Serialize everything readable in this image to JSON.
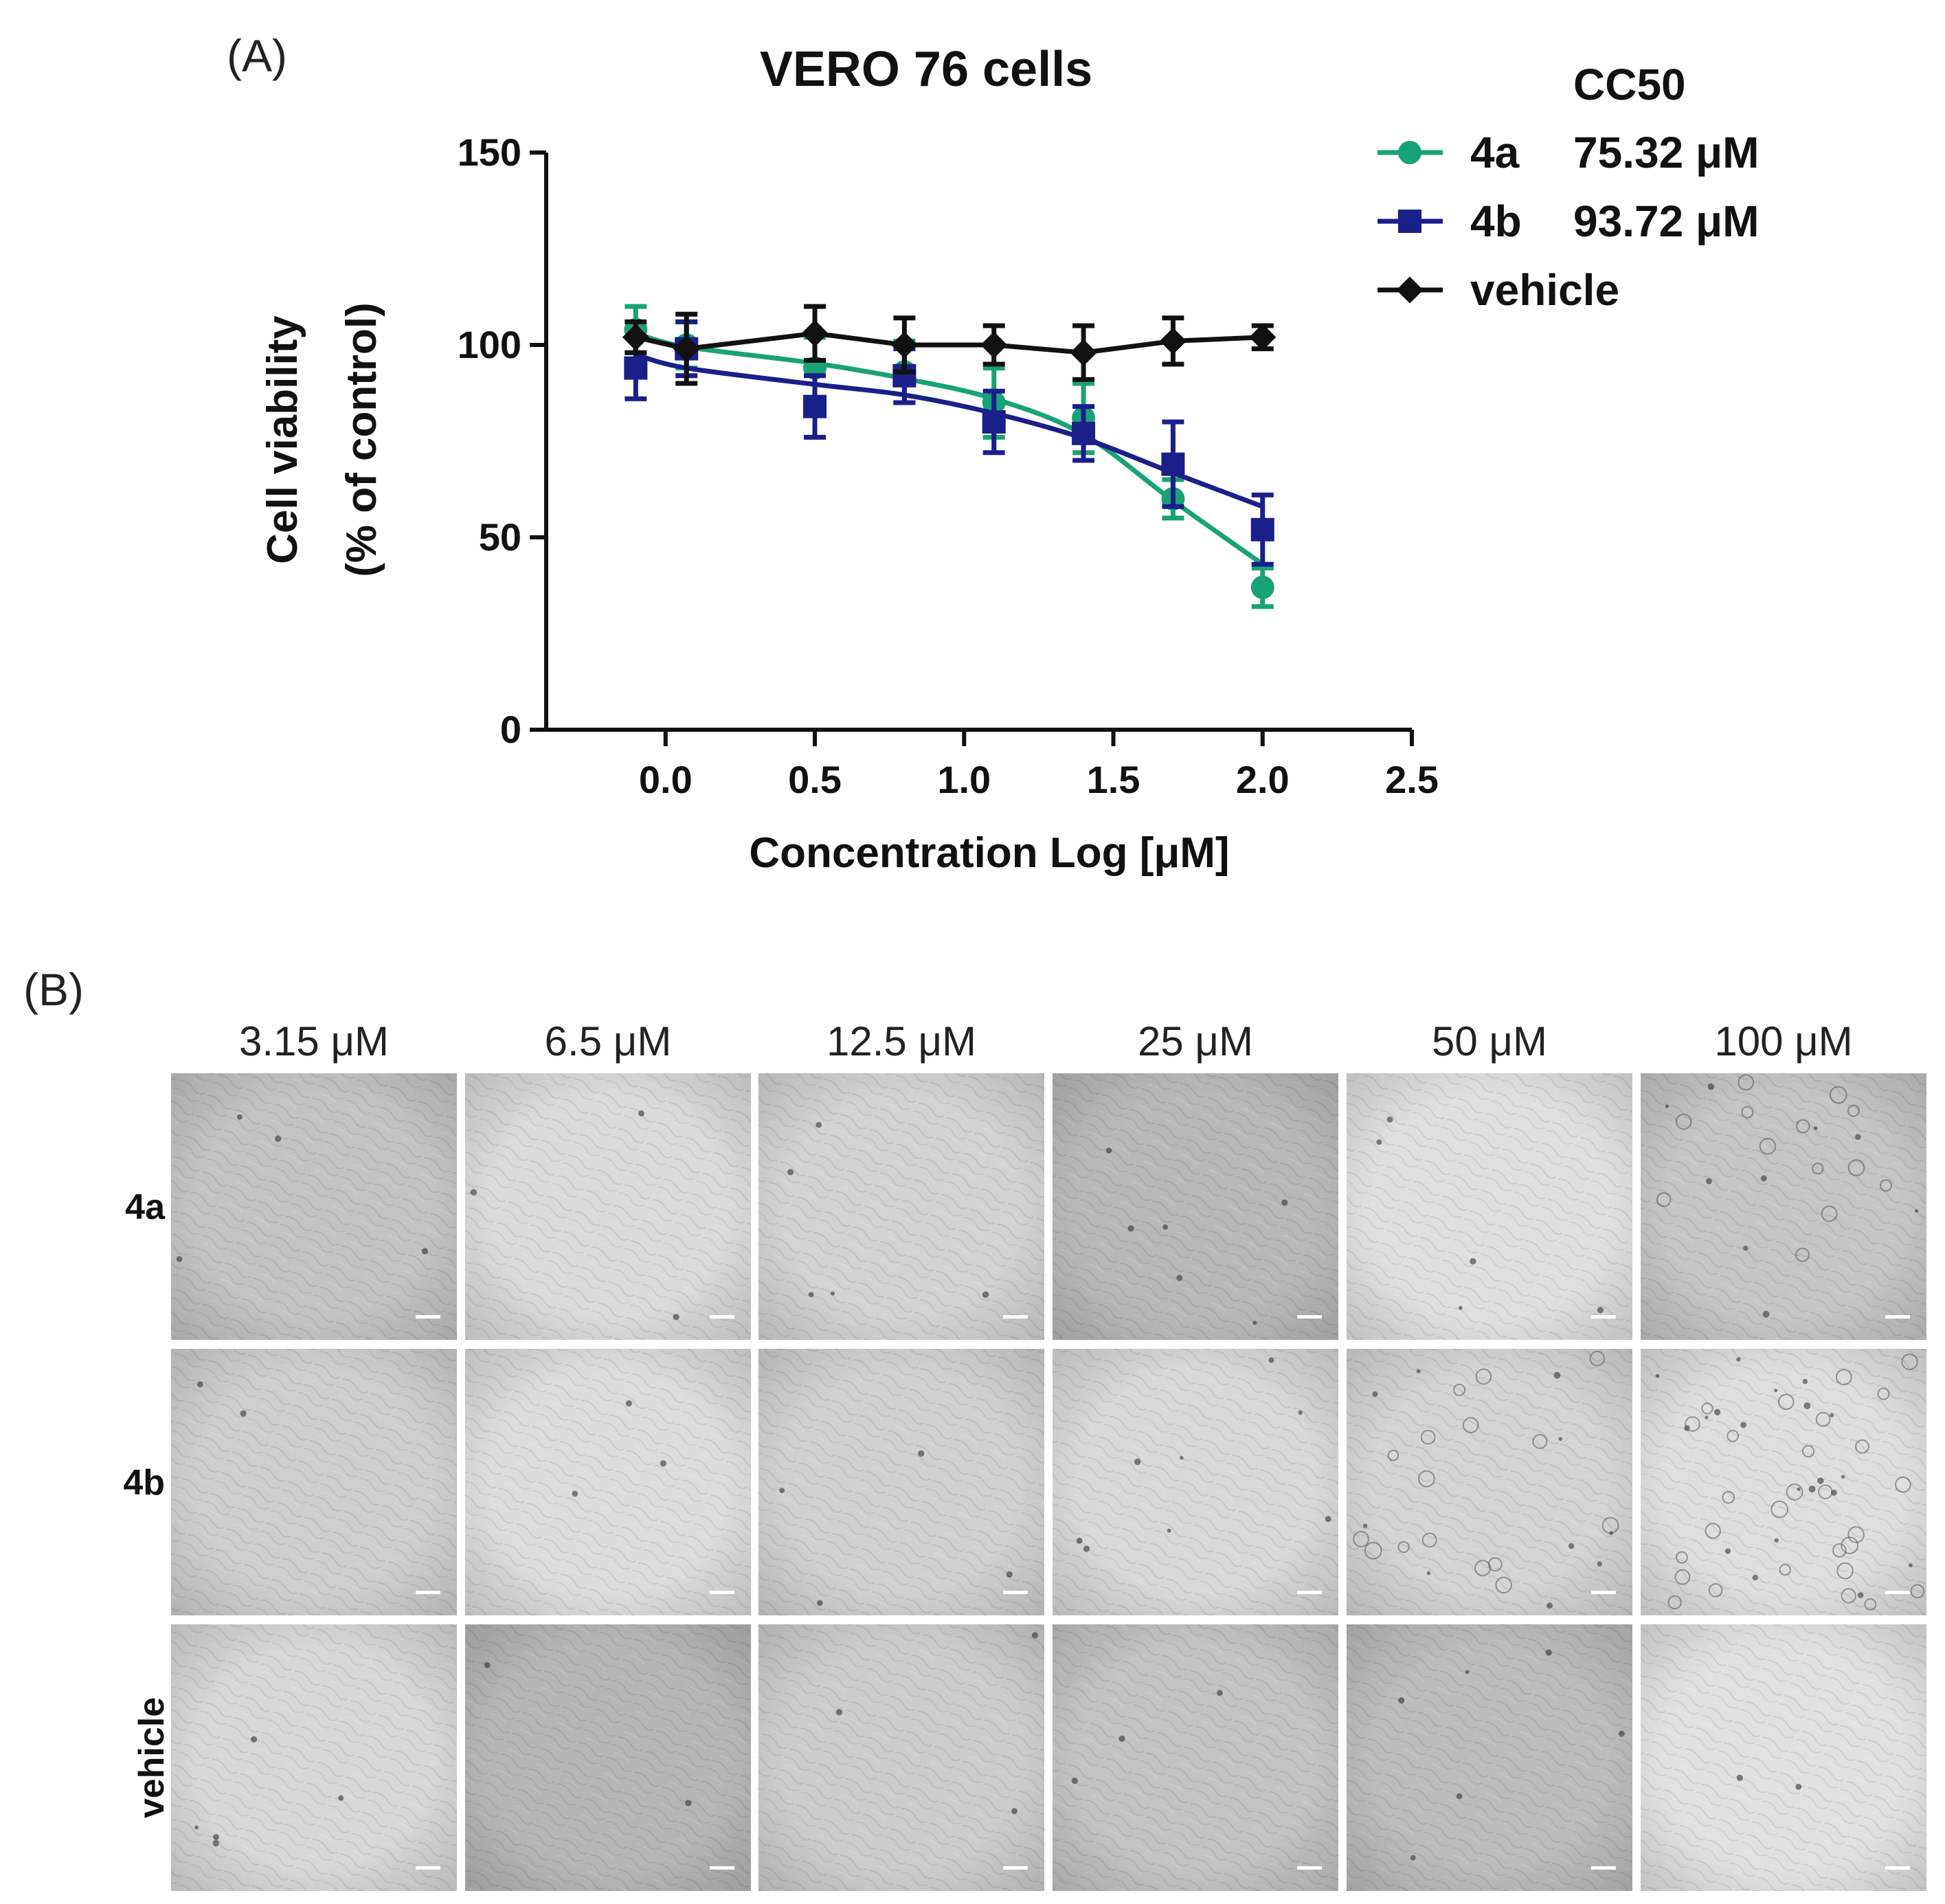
{
  "panel_a_label": "(A)",
  "panel_b_label": "(B)",
  "chart_data": {
    "type": "line",
    "title": "VERO 76 cells",
    "xlabel": "Concentration Log [μM]",
    "ylabel_line1": "Cell viability",
    "ylabel_line2": "(% of control)",
    "xlim": [
      -0.4,
      2.5
    ],
    "ylim": [
      0,
      150
    ],
    "xticks": [
      0.0,
      0.5,
      1.0,
      1.5,
      2.0,
      2.5
    ],
    "xtick_labels": [
      "0.0",
      "0.5",
      "1.0",
      "1.5",
      "2.0",
      "2.5"
    ],
    "yticks": [
      0,
      50,
      100,
      150
    ],
    "ytick_labels": [
      "0",
      "50",
      "100",
      "150"
    ],
    "legend_header": "CC50",
    "series": [
      {
        "name": "4a",
        "cc50": "75.32 μM",
        "color": "#1aa277",
        "marker": "circle",
        "x": [
          -0.1,
          0.07,
          0.5,
          0.8,
          1.1,
          1.4,
          1.7,
          2.0
        ],
        "y": [
          104,
          100,
          94,
          93,
          85,
          81,
          60,
          37
        ],
        "err": [
          6,
          6,
          8,
          8,
          9,
          9,
          5,
          5
        ],
        "fit": true
      },
      {
        "name": "4b",
        "cc50": "93.72 μM",
        "color": "#1a1f8a",
        "marker": "square",
        "x": [
          -0.1,
          0.07,
          0.5,
          0.8,
          1.1,
          1.4,
          1.7,
          2.0
        ],
        "y": [
          94,
          99,
          84,
          92,
          80,
          77,
          69,
          52
        ],
        "err": [
          8,
          7,
          8,
          7,
          8,
          7,
          11,
          9
        ],
        "fit": true
      },
      {
        "name": "vehicle",
        "cc50": "",
        "color": "#111111",
        "marker": "diamond",
        "x": [
          -0.1,
          0.07,
          0.5,
          0.8,
          1.1,
          1.4,
          1.7,
          2.0
        ],
        "y": [
          102,
          99,
          103,
          100,
          100,
          98,
          101,
          102
        ],
        "err": [
          4,
          9,
          7,
          7,
          5,
          7,
          6,
          3
        ],
        "fit": false
      }
    ]
  },
  "micrographs": {
    "columns": [
      "3.15 μM",
      "6.5 μM",
      "12.5 μM",
      "25 μM",
      "50 μM",
      "100 μM"
    ],
    "rows": [
      {
        "label": "4a",
        "tones": [
          "#c3c3c3",
          "#dadada",
          "#d3d3d3",
          "#b9b9b9",
          "#e0e0e0",
          "#c5c5c5"
        ],
        "debris": [
          4,
          3,
          5,
          6,
          5,
          22
        ]
      },
      {
        "label": "4b",
        "tones": [
          "#cfcfcf",
          "#dcdcdc",
          "#d1d1d1",
          "#d8d8d8",
          "#d4d4d4",
          "#dedede"
        ],
        "debris": [
          2,
          3,
          4,
          8,
          26,
          48
        ]
      },
      {
        "label": "vehicle",
        "tones": [
          "#d7d7d7",
          "#b6b6b6",
          "#cdcdcd",
          "#c3c3c3",
          "#bcbcbc",
          "#e2e2e2"
        ],
        "debris": [
          5,
          2,
          3,
          3,
          6,
          2
        ]
      }
    ]
  }
}
